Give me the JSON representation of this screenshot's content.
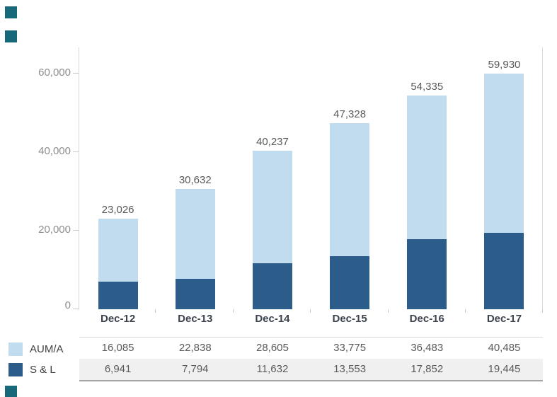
{
  "decor": {
    "bullet_color": "#17697A"
  },
  "chart": {
    "y_tick_labels": [
      "60,000",
      "40,000",
      "20,000",
      "0"
    ],
    "total_labels": [
      "23,026",
      "30,632",
      "40,237",
      "47,328",
      "54,335",
      "59,930"
    ],
    "category_labels": [
      "Dec-12",
      "Dec-13",
      "Dec-14",
      "Dec-15",
      "Dec-16",
      "Dec-17"
    ]
  },
  "chart_data": {
    "type": "bar",
    "stacked": true,
    "categories": [
      "Dec-12",
      "Dec-13",
      "Dec-14",
      "Dec-15",
      "Dec-16",
      "Dec-17"
    ],
    "series": [
      {
        "name": "AUM/A",
        "values": [
          16085,
          22838,
          28605,
          33775,
          36483,
          40485
        ],
        "color": "#C1DCEE"
      },
      {
        "name": "S & L",
        "values": [
          6941,
          7794,
          11632,
          13553,
          17852,
          19445
        ],
        "color": "#2B5C8A"
      }
    ],
    "totals": [
      23026,
      30632,
      40237,
      47328,
      54335,
      59930
    ],
    "title": "",
    "xlabel": "",
    "ylabel": "",
    "ylim": [
      0,
      60000
    ],
    "yticks": [
      0,
      20000,
      40000,
      60000
    ],
    "grid": false,
    "legend_position": "bottom-left",
    "data_labels": "totals above bars"
  },
  "table": {
    "rows": [
      {
        "label": "AUM/A",
        "swatch_color": "#C1DCEE",
        "values": [
          "16,085",
          "22,838",
          "28,605",
          "33,775",
          "36,483",
          "40,485"
        ]
      },
      {
        "label": "S & L",
        "swatch_color": "#2B5C8A",
        "values": [
          "6,941",
          "7,794",
          "11,632",
          "13,553",
          "17,852",
          "19,445"
        ]
      }
    ]
  }
}
